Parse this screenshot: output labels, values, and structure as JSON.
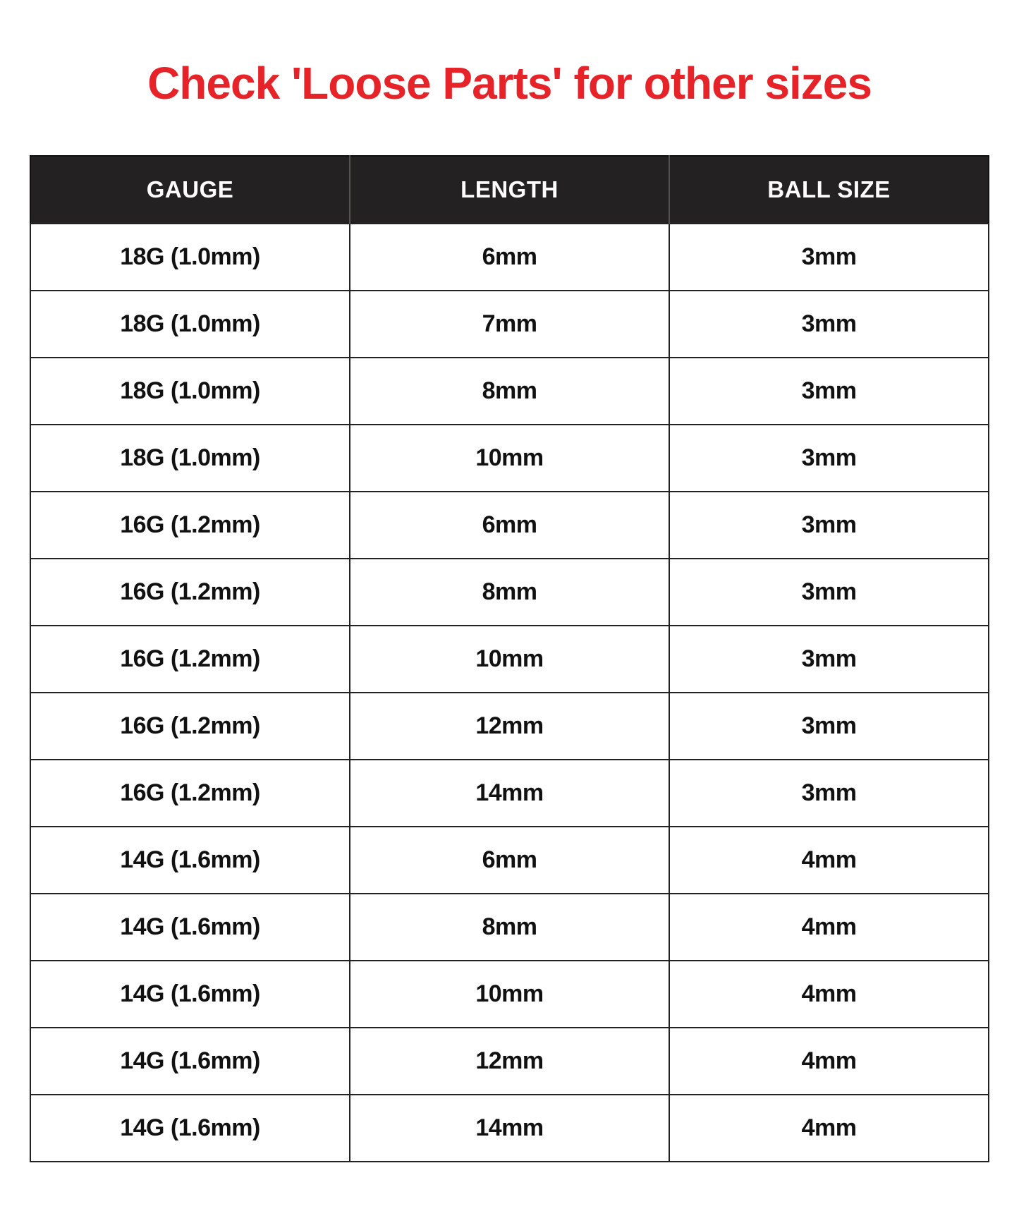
{
  "title": "Check 'Loose Parts' for other sizes",
  "colors": {
    "title-red": "#e62329",
    "header-bg": "#242122",
    "header-text": "#ffffff",
    "text": "#111111",
    "page-bg": "#ffffff"
  },
  "chart_data": {
    "type": "table",
    "title": "Check 'Loose Parts' for other sizes",
    "columns": [
      "GAUGE",
      "LENGTH",
      "BALL SIZE"
    ],
    "rows": [
      [
        "18G (1.0mm)",
        "6mm",
        "3mm"
      ],
      [
        "18G (1.0mm)",
        "7mm",
        "3mm"
      ],
      [
        "18G (1.0mm)",
        "8mm",
        "3mm"
      ],
      [
        "18G (1.0mm)",
        "10mm",
        "3mm"
      ],
      [
        "16G (1.2mm)",
        "6mm",
        "3mm"
      ],
      [
        "16G (1.2mm)",
        "8mm",
        "3mm"
      ],
      [
        "16G (1.2mm)",
        "10mm",
        "3mm"
      ],
      [
        "16G (1.2mm)",
        "12mm",
        "3mm"
      ],
      [
        "16G (1.2mm)",
        "14mm",
        "3mm"
      ],
      [
        "14G (1.6mm)",
        "6mm",
        "4mm"
      ],
      [
        "14G (1.6mm)",
        "8mm",
        "4mm"
      ],
      [
        "14G (1.6mm)",
        "10mm",
        "4mm"
      ],
      [
        "14G (1.6mm)",
        "12mm",
        "4mm"
      ],
      [
        "14G (1.6mm)",
        "14mm",
        "4mm"
      ]
    ],
    "layout": {
      "header_position": "top",
      "grid": true,
      "column_count": 3,
      "row_count": 14
    }
  }
}
